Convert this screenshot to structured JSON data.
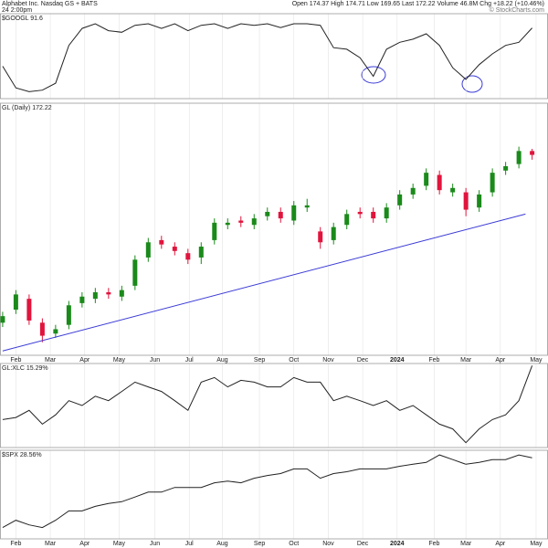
{
  "header": {
    "name": "Alphabet Inc. Nasdaq GS + BATS",
    "time": "24 2:00pm",
    "quote": "Open 174.37  High 174.71  Low 169.65  Last 172.22  Volume 46.8M  Chg +18.22 (+10.46%)",
    "credit": "© StockCharts.com"
  },
  "chart_data": [
    {
      "type": "line",
      "title": "$GOOGL 91.6",
      "color": "#222222",
      "values": [
        42,
        14,
        9,
        11,
        20,
        69,
        91,
        97,
        88,
        86,
        95,
        97,
        91,
        97,
        88,
        95,
        97,
        91,
        97,
        95,
        97,
        92,
        97,
        97,
        95,
        66,
        64,
        53,
        29,
        64,
        73,
        77,
        84,
        69,
        40,
        25,
        44,
        58,
        69,
        73,
        91.6
      ],
      "ylim": [
        0,
        110
      ],
      "xlim": [
        -0.2,
        41.2
      ]
    },
    {
      "type": "candlestick",
      "title": "GL (Daily) 172.22",
      "up_color": "#1a8a1a",
      "down_color": "#e0143c",
      "open": [
        95,
        101,
        106,
        95,
        90,
        94,
        104,
        106,
        109,
        107,
        112,
        125,
        133,
        130,
        127,
        125,
        133,
        140,
        142,
        140,
        144,
        146,
        142,
        148,
        137,
        133,
        140,
        146,
        146,
        143,
        149,
        154,
        158,
        163,
        155,
        155,
        148,
        155,
        165,
        168,
        174
      ],
      "high": [
        100,
        110,
        108,
        97,
        94,
        105,
        109,
        111,
        111,
        112,
        126,
        134,
        135,
        132,
        129,
        132,
        143,
        143,
        144,
        145,
        148,
        148,
        151,
        152,
        139,
        141,
        147,
        148,
        148,
        150,
        156,
        159,
        166,
        165,
        159,
        157,
        156,
        166,
        169,
        176,
        175
      ],
      "low": [
        93,
        99,
        94,
        86,
        88,
        92,
        102,
        104,
        106,
        105,
        110,
        123,
        129,
        126,
        122,
        122,
        131,
        138,
        139,
        138,
        142,
        141,
        140,
        146,
        129,
        131,
        138,
        143,
        141,
        141,
        147,
        152,
        156,
        154,
        153,
        144,
        146,
        153,
        163,
        166,
        170
      ],
      "close": [
        98,
        108,
        96,
        89,
        92,
        103,
        107,
        109,
        108,
        110,
        124,
        132,
        131,
        128,
        124,
        130,
        141,
        141,
        141,
        143,
        146,
        143,
        149,
        149,
        132,
        139,
        145,
        145,
        143,
        148,
        154,
        157,
        164,
        156,
        157,
        147,
        154,
        164,
        167,
        174,
        172.22
      ],
      "trendline": {
        "color": "#3b3bd6",
        "x": [
          0,
          39.5
        ],
        "values": [
          82,
          145
        ]
      },
      "ylim": [
        80,
        196
      ],
      "xlim": [
        -0.2,
        41.2
      ],
      "xticks": [
        {
          "value": 1.0,
          "label": "Feb"
        },
        {
          "value": 3.6,
          "label": "Mar"
        },
        {
          "value": 6.2,
          "label": "Apr"
        },
        {
          "value": 8.8,
          "label": "May"
        },
        {
          "value": 11.5,
          "label": "Jun"
        },
        {
          "value": 14.1,
          "label": "Jul"
        },
        {
          "value": 16.6,
          "label": "Aug"
        },
        {
          "value": 19.4,
          "label": "Sep"
        },
        {
          "value": 22.0,
          "label": "Oct"
        },
        {
          "value": 24.6,
          "label": "Nov"
        },
        {
          "value": 27.2,
          "label": "Dec"
        },
        {
          "value": 29.8,
          "label": "2024"
        },
        {
          "value": 32.6,
          "label": "Feb"
        },
        {
          "value": 35.0,
          "label": "Mar"
        },
        {
          "value": 37.6,
          "label": "Apr"
        },
        {
          "value": 40.3,
          "label": "May"
        }
      ]
    },
    {
      "type": "line",
      "title": "GL:XLC 15.29%",
      "color": "#222222",
      "values": [
        -2.7,
        -2.0,
        0.4,
        -4.2,
        -1.1,
        3.6,
        2.0,
        5.1,
        3.6,
        6.7,
        9.8,
        8.2,
        6.7,
        3.6,
        0.4,
        9.8,
        11.3,
        8.2,
        10.4,
        9.8,
        8.2,
        8.2,
        11.3,
        9.8,
        9.8,
        3.6,
        5.1,
        3.6,
        2.0,
        3.6,
        0.4,
        2.0,
        -1.1,
        -4.2,
        -5.8,
        -10.4,
        -5.8,
        -2.7,
        -1.1,
        3.6,
        15.29
      ],
      "ylim": [
        -12,
        16
      ],
      "xlim": [
        -0.2,
        41.2
      ]
    },
    {
      "type": "line",
      "title": "$SPX 28.56%",
      "color": "#222222",
      "values": [
        -2.9,
        0.4,
        -1.7,
        -2.9,
        0.4,
        4.6,
        4.6,
        6.7,
        8.0,
        8.8,
        10.9,
        13.1,
        13.1,
        15.2,
        15.2,
        15.2,
        17.3,
        18.1,
        17.3,
        19.4,
        20.6,
        21.5,
        23.6,
        23.6,
        19.4,
        21.5,
        22.3,
        23.6,
        23.6,
        23.6,
        24.8,
        25.7,
        26.5,
        29.9,
        27.8,
        25.7,
        26.5,
        27.8,
        27.8,
        29.9,
        28.56
      ],
      "ylim": [
        -8,
        32
      ],
      "xlim": [
        -0.2,
        41.2
      ],
      "xticks": [
        {
          "value": 1.0,
          "label": "Feb"
        },
        {
          "value": 3.6,
          "label": "Mar"
        },
        {
          "value": 6.2,
          "label": "Apr"
        },
        {
          "value": 8.8,
          "label": "May"
        },
        {
          "value": 11.5,
          "label": "Jun"
        },
        {
          "value": 14.1,
          "label": "Jul"
        },
        {
          "value": 16.6,
          "label": "Aug"
        },
        {
          "value": 19.4,
          "label": "Sep"
        },
        {
          "value": 22.0,
          "label": "Oct"
        },
        {
          "value": 24.6,
          "label": "Nov"
        },
        {
          "value": 27.2,
          "label": "Dec"
        },
        {
          "value": 29.8,
          "label": "2024"
        },
        {
          "value": 32.6,
          "label": "Feb"
        },
        {
          "value": 35.0,
          "label": "Mar"
        },
        {
          "value": 37.6,
          "label": "Apr"
        },
        {
          "value": 40.3,
          "label": "May"
        }
      ]
    }
  ]
}
